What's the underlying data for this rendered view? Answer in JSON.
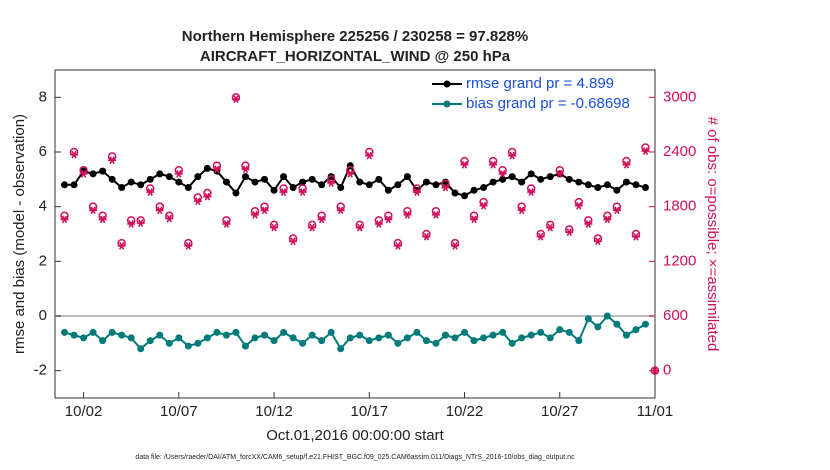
{
  "chart_data": {
    "type": "line",
    "title": "Northern Hemisphere 225256 / 230258 = 97.828%",
    "subtitle": "AIRCRAFT_HORIZONTAL_WIND @ 250 hPa",
    "xlabel": "Oct.01,2016 00:00:00 start",
    "ylabel": "rmse and bias (model - observation)",
    "y2label": "# of obs: o=possible; ×=assimilated",
    "footnote": "data file: /Users/raeder/DAI/ATM_forcXX/CAM6_setup/f.e21.FHIST_BGC.f09_025.CAM6assim.011/Diags_NTrS_2016-10/obs_diag_output.nc",
    "x": [
      0,
      0.5,
      1,
      1.5,
      2,
      2.5,
      3,
      3.5,
      4,
      4.5,
      5,
      5.5,
      6,
      6.5,
      7,
      7.5,
      8,
      8.5,
      9,
      9.5,
      10,
      10.5,
      11,
      11.5,
      12,
      12.5,
      13,
      13.5,
      14,
      14.5,
      15,
      15.5,
      16,
      16.5,
      17,
      17.5,
      18,
      18.5,
      19,
      19.5,
      20,
      20.5,
      21,
      21.5,
      22,
      22.5,
      23,
      23.5,
      24,
      24.5,
      25,
      25.5,
      26,
      26.5,
      27,
      27.5,
      28,
      28.5,
      29,
      29.5,
      30,
      30.5,
      31
    ],
    "xlim": [
      -0.5,
      31
    ],
    "xticks": [
      {
        "value": 1,
        "label": "10/02"
      },
      {
        "value": 6,
        "label": "10/07"
      },
      {
        "value": 11,
        "label": "10/12"
      },
      {
        "value": 16,
        "label": "10/17"
      },
      {
        "value": 21,
        "label": "10/22"
      },
      {
        "value": 26,
        "label": "10/27"
      },
      {
        "value": 31,
        "label": "11/01"
      }
    ],
    "ylim": [
      -3,
      9
    ],
    "yticks": [
      -2,
      0,
      2,
      4,
      6,
      8
    ],
    "y2lim": [
      -300,
      3300
    ],
    "y2ticks": [
      0,
      600,
      1200,
      1800,
      2400,
      3000
    ],
    "zero_line": true,
    "legend": "upper right",
    "series": [
      {
        "name": "rmse grand pr = 4.899",
        "color": "#000000",
        "marker": "circle",
        "line": true,
        "values": [
          4.8,
          4.8,
          5.3,
          5.2,
          5.3,
          5.0,
          4.7,
          4.9,
          4.8,
          5.0,
          5.2,
          5.1,
          4.9,
          4.7,
          5.1,
          5.4,
          5.3,
          4.9,
          4.5,
          5.1,
          4.9,
          5.0,
          4.6,
          5.1,
          4.7,
          4.9,
          5.0,
          4.8,
          5.1,
          4.7,
          5.5,
          4.9,
          4.8,
          5.0,
          4.6,
          4.8,
          5.1,
          4.6,
          4.9,
          4.8,
          4.9,
          4.5,
          4.4,
          4.6,
          4.7,
          4.9,
          5.0,
          5.1,
          4.9,
          5.2,
          5.0,
          5.1,
          5.2,
          5.0,
          4.9,
          4.8,
          4.7,
          4.8,
          4.6,
          4.9,
          4.8,
          4.7,
          null
        ]
      },
      {
        "name": "bias grand pr = -0.68698",
        "color": "#007a7a",
        "marker": "circle",
        "line": true,
        "values": [
          -0.6,
          -0.7,
          -0.8,
          -0.6,
          -0.9,
          -0.6,
          -0.7,
          -0.8,
          -1.2,
          -0.9,
          -0.7,
          -1.0,
          -0.8,
          -1.1,
          -1.0,
          -0.8,
          -0.6,
          -0.7,
          -0.6,
          -1.1,
          -0.8,
          -0.7,
          -0.9,
          -0.6,
          -0.8,
          -1.0,
          -0.7,
          -0.9,
          -0.6,
          -1.2,
          -0.8,
          -0.7,
          -0.9,
          -0.8,
          -0.7,
          -1.0,
          -0.8,
          -0.6,
          -0.9,
          -1.0,
          -0.7,
          -0.8,
          -0.6,
          -0.9,
          -0.8,
          -0.7,
          -0.6,
          -1.0,
          -0.8,
          -0.7,
          -0.6,
          -0.8,
          -0.5,
          -0.6,
          -0.9,
          -0.1,
          -0.4,
          0.0,
          -0.3,
          -0.7,
          -0.5,
          -0.3,
          null
        ]
      },
      {
        "color": "#d0105a",
        "marker": "open-circle",
        "line": false,
        "axis": "y2",
        "values": [
          1700,
          2400,
          2200,
          1800,
          1700,
          2350,
          1400,
          1650,
          1650,
          2000,
          1800,
          1700,
          2200,
          1400,
          1900,
          1950,
          2250,
          1650,
          3000,
          2250,
          1750,
          1800,
          1600,
          2000,
          1450,
          2000,
          1600,
          1700,
          2100,
          1800,
          2200,
          1600,
          2400,
          1650,
          1700,
          1400,
          1750,
          2000,
          1500,
          1750,
          2050,
          1400,
          2300,
          1700,
          1850,
          2300,
          2200,
          2400,
          1800,
          2000,
          1500,
          1600,
          2200,
          1550,
          1850,
          1650,
          1450,
          1700,
          1800,
          2300,
          1500,
          2450,
          0
        ]
      },
      {
        "color": "#d0105a",
        "marker": "asterisk",
        "line": false,
        "axis": "y2",
        "values": [
          1660,
          2370,
          2160,
          1760,
          1660,
          2310,
          1370,
          1610,
          1620,
          1960,
          1760,
          1670,
          2160,
          1370,
          1860,
          1910,
          2210,
          1610,
          2980,
          2210,
          1710,
          1760,
          1570,
          1960,
          1420,
          1960,
          1570,
          1660,
          2060,
          1760,
          2160,
          1570,
          2360,
          1610,
          1660,
          1370,
          1710,
          1960,
          1470,
          1710,
          2010,
          1370,
          2260,
          1660,
          1810,
          2260,
          2160,
          2360,
          1760,
          1960,
          1470,
          1570,
          2160,
          1520,
          1810,
          1610,
          1420,
          1660,
          1760,
          2260,
          1470,
          2410,
          0
        ]
      }
    ]
  }
}
